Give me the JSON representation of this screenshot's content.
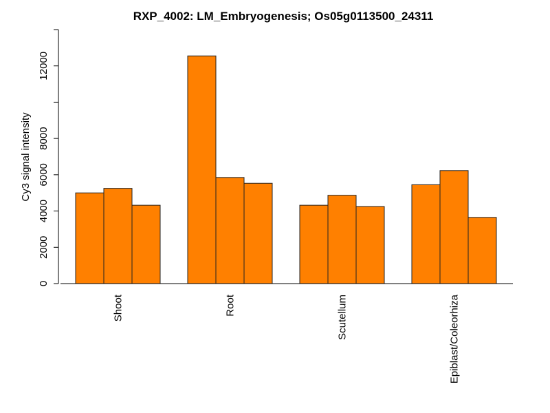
{
  "chart_data": {
    "type": "bar",
    "title": "RXP_4002: LM_Embryogenesis; Os05g0113500_24311",
    "ylabel": "Cy3 signal intensity",
    "xlabel": "",
    "categories": [
      "Shoot",
      "Root",
      "Scutellum",
      "Epiblast/Coleorhiza"
    ],
    "series": [
      {
        "values": [
          5000,
          12550,
          4320,
          5450
        ]
      },
      {
        "values": [
          5250,
          5850,
          4870,
          6230
        ]
      },
      {
        "values": [
          4320,
          5530,
          4250,
          3650
        ]
      }
    ],
    "ylim": [
      0,
      14000
    ],
    "yticks": [
      {
        "value": 0,
        "label": "0"
      },
      {
        "value": 2000,
        "label": "2000"
      },
      {
        "value": 4000,
        "label": "4000"
      },
      {
        "value": 6000,
        "label": "6000"
      },
      {
        "value": 8000,
        "label": "8000"
      },
      {
        "value": 10000,
        "label": ""
      },
      {
        "value": 12000,
        "label": "12000"
      },
      {
        "value": 14000,
        "label": ""
      }
    ],
    "bar_color": "#ff8000",
    "grid": false
  }
}
